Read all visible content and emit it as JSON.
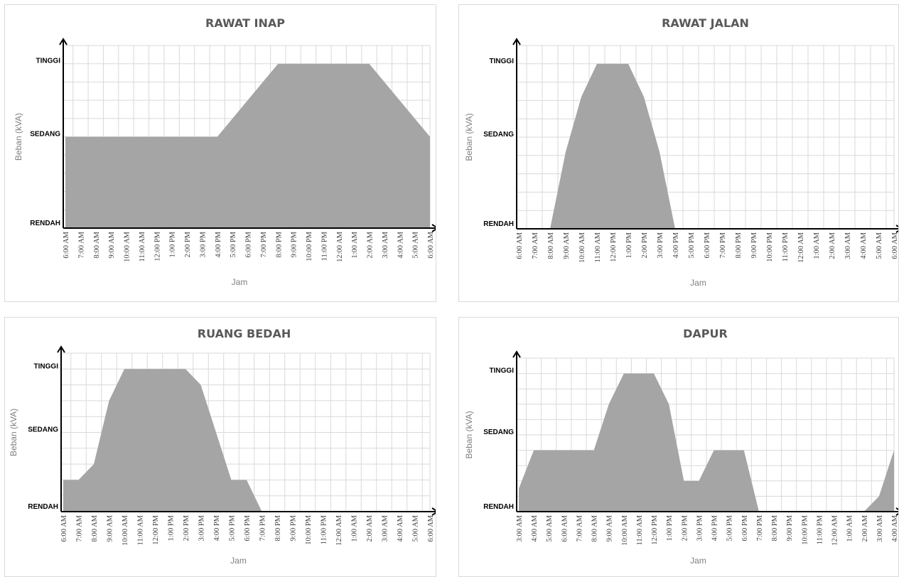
{
  "colors": {
    "area": "#a5a5a5",
    "grid": "#d9d9d9",
    "axis": "#000000"
  },
  "chart_data": [
    {
      "type": "area",
      "title": "RAWAT INAP",
      "xlabel": "Jam",
      "ylabel": "Beban (kVA)",
      "y_levels": [
        "RENDAH",
        "SEDANG",
        "TINGGI"
      ],
      "ylim": [
        0,
        1
      ],
      "grid": true,
      "x": [
        "6:00 AM",
        "7:00 AM",
        "8:00 AM",
        "9:00 AM",
        "10:00 AM",
        "11:00 AM",
        "12:00 PM",
        "1:00 PM",
        "2:00 PM",
        "3:00 PM",
        "4:00 PM",
        "5:00 PM",
        "6:00 PM",
        "7:00 PM",
        "8:00 PM",
        "9:00 PM",
        "10:00 PM",
        "11:00 PM",
        "12:00 AM",
        "1:00 AM",
        "2:00 AM",
        "3:00 AM",
        "4:00 AM",
        "5:00 AM",
        "6:00 AM"
      ],
      "values": [
        0.5,
        0.5,
        0.5,
        0.5,
        0.5,
        0.5,
        0.5,
        0.5,
        0.5,
        0.5,
        0.5,
        0.6,
        0.7,
        0.8,
        0.9,
        0.9,
        0.9,
        0.9,
        0.9,
        0.9,
        0.9,
        0.8,
        0.7,
        0.6,
        0.5
      ]
    },
    {
      "type": "area",
      "title": "RAWAT JALAN",
      "xlabel": "Jam",
      "ylabel": "Beban (kVA)",
      "y_levels": [
        "RENDAH",
        "SEDANG",
        "TINGGI"
      ],
      "ylim": [
        0,
        1
      ],
      "grid": true,
      "x": [
        "6:00 AM",
        "7:00 AM",
        "8:00 AM",
        "9:00 AM",
        "10:00 AM",
        "11:00 AM",
        "12:00 PM",
        "1:00 PM",
        "2:00 PM",
        "3:00 PM",
        "4:00 PM",
        "5:00 PM",
        "6:00 PM",
        "7:00 PM",
        "8:00 PM",
        "9:00 PM",
        "10:00 PM",
        "11:00 PM",
        "12:00 AM",
        "1:00 AM",
        "2:00 AM",
        "3:00 AM",
        "4:00 AM",
        "5:00 AM",
        "6:00 AM"
      ],
      "values": [
        0,
        0,
        0,
        0.42,
        0.72,
        0.9,
        0.9,
        0.9,
        0.72,
        0.42,
        0,
        0,
        0,
        0,
        0,
        0,
        0,
        0,
        0,
        0,
        0,
        0,
        0,
        0,
        0
      ]
    },
    {
      "type": "area",
      "title": "RUANG BEDAH",
      "xlabel": "Jam",
      "ylabel": "Beban (kVA)",
      "y_levels": [
        "RENDAH",
        "SEDANG",
        "TINGGI"
      ],
      "ylim": [
        0,
        1
      ],
      "grid": true,
      "x": [
        "6:00 AM",
        "7:00 AM",
        "8:00 AM",
        "9:00 AM",
        "10:00 AM",
        "11:00 AM",
        "12:00 PM",
        "1:00 PM",
        "2:00 PM",
        "3:00 PM",
        "4:00 PM",
        "5:00 PM",
        "6:00 PM",
        "7:00 PM",
        "8:00 PM",
        "9:00 PM",
        "10:00 PM",
        "11:00 PM",
        "12:00 AM",
        "1:00 AM",
        "2:00 AM",
        "3:00 AM",
        "4:00 AM",
        "5:00 AM",
        "6:00 AM"
      ],
      "values": [
        0.2,
        0.2,
        0.3,
        0.7,
        0.9,
        0.9,
        0.9,
        0.9,
        0.9,
        0.8,
        0.5,
        0.2,
        0.2,
        0,
        0,
        0,
        0,
        0,
        0,
        0,
        0,
        0,
        0,
        0,
        0
      ]
    },
    {
      "type": "area",
      "title": "DAPUR",
      "xlabel": "Jam",
      "ylabel": "Beban (kVA)",
      "y_levels": [
        "RENDAH",
        "SEDANG",
        "TINGGI"
      ],
      "ylim": [
        0,
        1
      ],
      "grid": true,
      "x": [
        "3:00 AM",
        "4:00 AM",
        "5:00 AM",
        "6:00 AM",
        "7:00 AM",
        "8:00 AM",
        "9:00 AM",
        "10:00 AM",
        "11:00 AM",
        "12:00 PM",
        "1:00 PM",
        "2:00 PM",
        "3:00 PM",
        "4:00 PM",
        "5:00 PM",
        "6:00 PM",
        "7:00 PM",
        "8:00 PM",
        "9:00 PM",
        "10:00 PM",
        "11:00 PM",
        "12:00 AM",
        "1:00 AM",
        "2:00 AM",
        "3:00 AM",
        "4:00 AM"
      ],
      "values": [
        0.15,
        0.4,
        0.4,
        0.4,
        0.4,
        0.4,
        0.7,
        0.9,
        0.9,
        0.9,
        0.7,
        0.2,
        0.2,
        0.4,
        0.4,
        0.4,
        0,
        0,
        0,
        0,
        0,
        0,
        0,
        0,
        0.1,
        0.4
      ]
    }
  ]
}
